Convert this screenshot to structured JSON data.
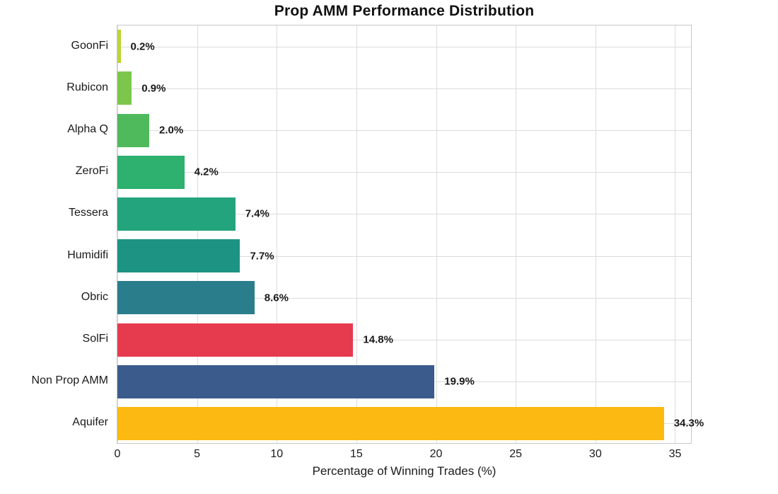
{
  "chart_data": {
    "type": "bar",
    "orientation": "horizontal",
    "title": "Prop AMM Performance Distribution",
    "xlabel": "Percentage of Winning Trades (%)",
    "ylabel": "",
    "xlim": [
      0,
      36
    ],
    "xticks": [
      "0",
      "5",
      "10",
      "15",
      "20",
      "25",
      "30",
      "35"
    ],
    "xtick_values": [
      0,
      5,
      10,
      15,
      20,
      25,
      30,
      35
    ],
    "grid": true,
    "legend": "none",
    "categories": [
      "GoonFi",
      "Rubicon",
      "Alpha Q",
      "ZeroFi",
      "Tessera",
      "Humidifi",
      "Obric",
      "SolFi",
      "Non Prop AMM",
      "Aquifer"
    ],
    "values": [
      0.2,
      0.9,
      2.0,
      4.2,
      7.4,
      7.7,
      8.6,
      14.8,
      19.9,
      34.3
    ],
    "value_labels": [
      "0.2%",
      "0.9%",
      "2.0%",
      "4.2%",
      "7.4%",
      "7.7%",
      "8.6%",
      "14.8%",
      "19.9%",
      "34.3%"
    ],
    "bar_colors": [
      "#b9d533",
      "#7cc74b",
      "#4fba5c",
      "#2eb06e",
      "#23a47c",
      "#1d9383",
      "#2a7e8c",
      "#e63a4e",
      "#3b5b8c",
      "#fbb911"
    ]
  },
  "colors": {
    "background": "#ffffff",
    "grid": "#dcdcdc",
    "plot_border": "#c8c8c8",
    "text": "#1a1a1a"
  }
}
